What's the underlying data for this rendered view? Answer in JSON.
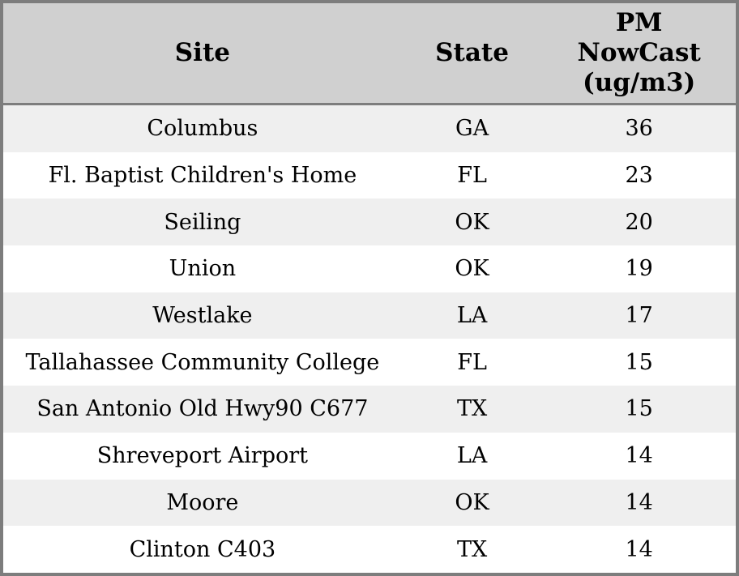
{
  "colors": {
    "border": "#7d7d7d",
    "header_bg": "#d0d0d0",
    "row_alt_bg": "#efefef",
    "row_bg": "#ffffff",
    "text": "#000000"
  },
  "table": {
    "header": {
      "site": "Site",
      "state": "State",
      "pm_lines": [
        "PM",
        "NowCast",
        "(ug/m3)"
      ]
    },
    "rows": [
      {
        "site": "Columbus",
        "state": "GA",
        "pm": "36"
      },
      {
        "site": "Fl. Baptist Children's Home",
        "state": "FL",
        "pm": "23"
      },
      {
        "site": "Seiling",
        "state": "OK",
        "pm": "20"
      },
      {
        "site": "Union",
        "state": "OK",
        "pm": "19"
      },
      {
        "site": "Westlake",
        "state": "LA",
        "pm": "17"
      },
      {
        "site": "Tallahassee Community College",
        "state": "FL",
        "pm": "15"
      },
      {
        "site": "San Antonio Old Hwy90 C677",
        "state": "TX",
        "pm": "15"
      },
      {
        "site": "Shreveport Airport",
        "state": "LA",
        "pm": "14"
      },
      {
        "site": "Moore",
        "state": "OK",
        "pm": "14"
      },
      {
        "site": "Clinton C403",
        "state": "TX",
        "pm": "14"
      }
    ]
  },
  "chart_data": {
    "type": "table",
    "title": "",
    "columns": [
      "Site",
      "State",
      "PM NowCast (ug/m3)"
    ],
    "rows": [
      [
        "Columbus",
        "GA",
        36
      ],
      [
        "Fl. Baptist Children's Home",
        "FL",
        23
      ],
      [
        "Seiling",
        "OK",
        20
      ],
      [
        "Union",
        "OK",
        19
      ],
      [
        "Westlake",
        "LA",
        17
      ],
      [
        "Tallahassee Community College",
        "FL",
        15
      ],
      [
        "San Antonio Old Hwy90 C677",
        "TX",
        15
      ],
      [
        "Shreveport Airport",
        "LA",
        14
      ],
      [
        "Moore",
        "OK",
        14
      ],
      [
        "Clinton C403",
        "TX",
        14
      ]
    ]
  }
}
